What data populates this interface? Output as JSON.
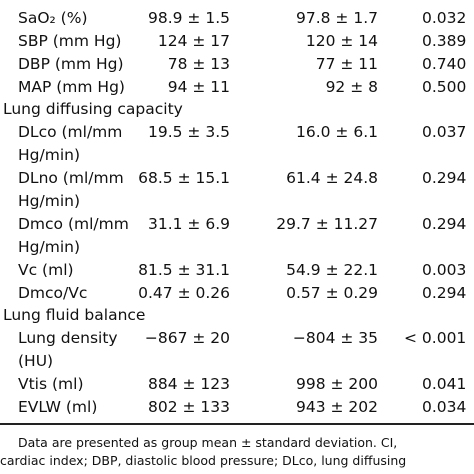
{
  "table": {
    "rows": [
      {
        "kind": "data",
        "param": "SaO₂ (%)",
        "g1": "98.9 ± 1.5",
        "g2": "97.8 ± 1.7",
        "p": "0.032"
      },
      {
        "kind": "data",
        "param": "SBP (mm Hg)",
        "g1": "124 ± 17",
        "g2": "120 ± 14",
        "p": "0.389"
      },
      {
        "kind": "data",
        "param": "DBP (mm Hg)",
        "g1": "78 ± 13",
        "g2": "77 ± 11",
        "p": "0.740"
      },
      {
        "kind": "data",
        "param": "MAP (mm Hg)",
        "g1": "94 ± 11",
        "g2": "92 ± 8",
        "p": "0.500"
      },
      {
        "kind": "section",
        "param": "Lung diffusing capacity"
      },
      {
        "kind": "data",
        "param": "DLco (ml/mm",
        "g1": "19.5 ± 3.5",
        "g2": "16.0 ± 6.1",
        "p": "0.037"
      },
      {
        "kind": "data",
        "param": "Hg/min)",
        "g1": "",
        "g2": "",
        "p": ""
      },
      {
        "kind": "data",
        "param": "DLno (ml/mm",
        "g1": "68.5 ± 15.1",
        "g2": "61.4 ± 24.8",
        "p": "0.294"
      },
      {
        "kind": "data",
        "param": "Hg/min)",
        "g1": "",
        "g2": "",
        "p": ""
      },
      {
        "kind": "data",
        "param": "Dmco (ml/mm",
        "g1": "31.1 ± 6.9",
        "g2": "29.7 ± 11.27",
        "p": "0.294"
      },
      {
        "kind": "data",
        "param": "Hg/min)",
        "g1": "",
        "g2": "",
        "p": ""
      },
      {
        "kind": "data",
        "param": "Vc (ml)",
        "g1": "81.5 ± 31.1",
        "g2": "54.9 ± 22.1",
        "p": "0.003"
      },
      {
        "kind": "data",
        "param": "Dmco/Vc",
        "g1": "0.47 ± 0.26",
        "g2": "0.57 ± 0.29",
        "p": "0.294"
      },
      {
        "kind": "section",
        "param": "Lung fluid balance"
      },
      {
        "kind": "data",
        "param": "Lung density",
        "g1": "−867 ± 20",
        "g2": "−804 ± 35",
        "p": "< 0.001",
        "p_lt": true
      },
      {
        "kind": "data",
        "param": "(HU)",
        "g1": "",
        "g2": "",
        "p": ""
      },
      {
        "kind": "data",
        "param": "Vtis (ml)",
        "g1": "884 ± 123",
        "g2": "998 ± 200",
        "p": "0.041"
      },
      {
        "kind": "data",
        "param": "EVLW (ml)",
        "g1": "802 ± 133",
        "g2": "943 ± 202",
        "p": "0.034"
      }
    ]
  },
  "footnote": {
    "line1": "Data are presented as group mean ± standard deviation. CI,",
    "line2": "cardiac index; DBP, diastolic blood pressure; DLco, lung diffusing"
  }
}
